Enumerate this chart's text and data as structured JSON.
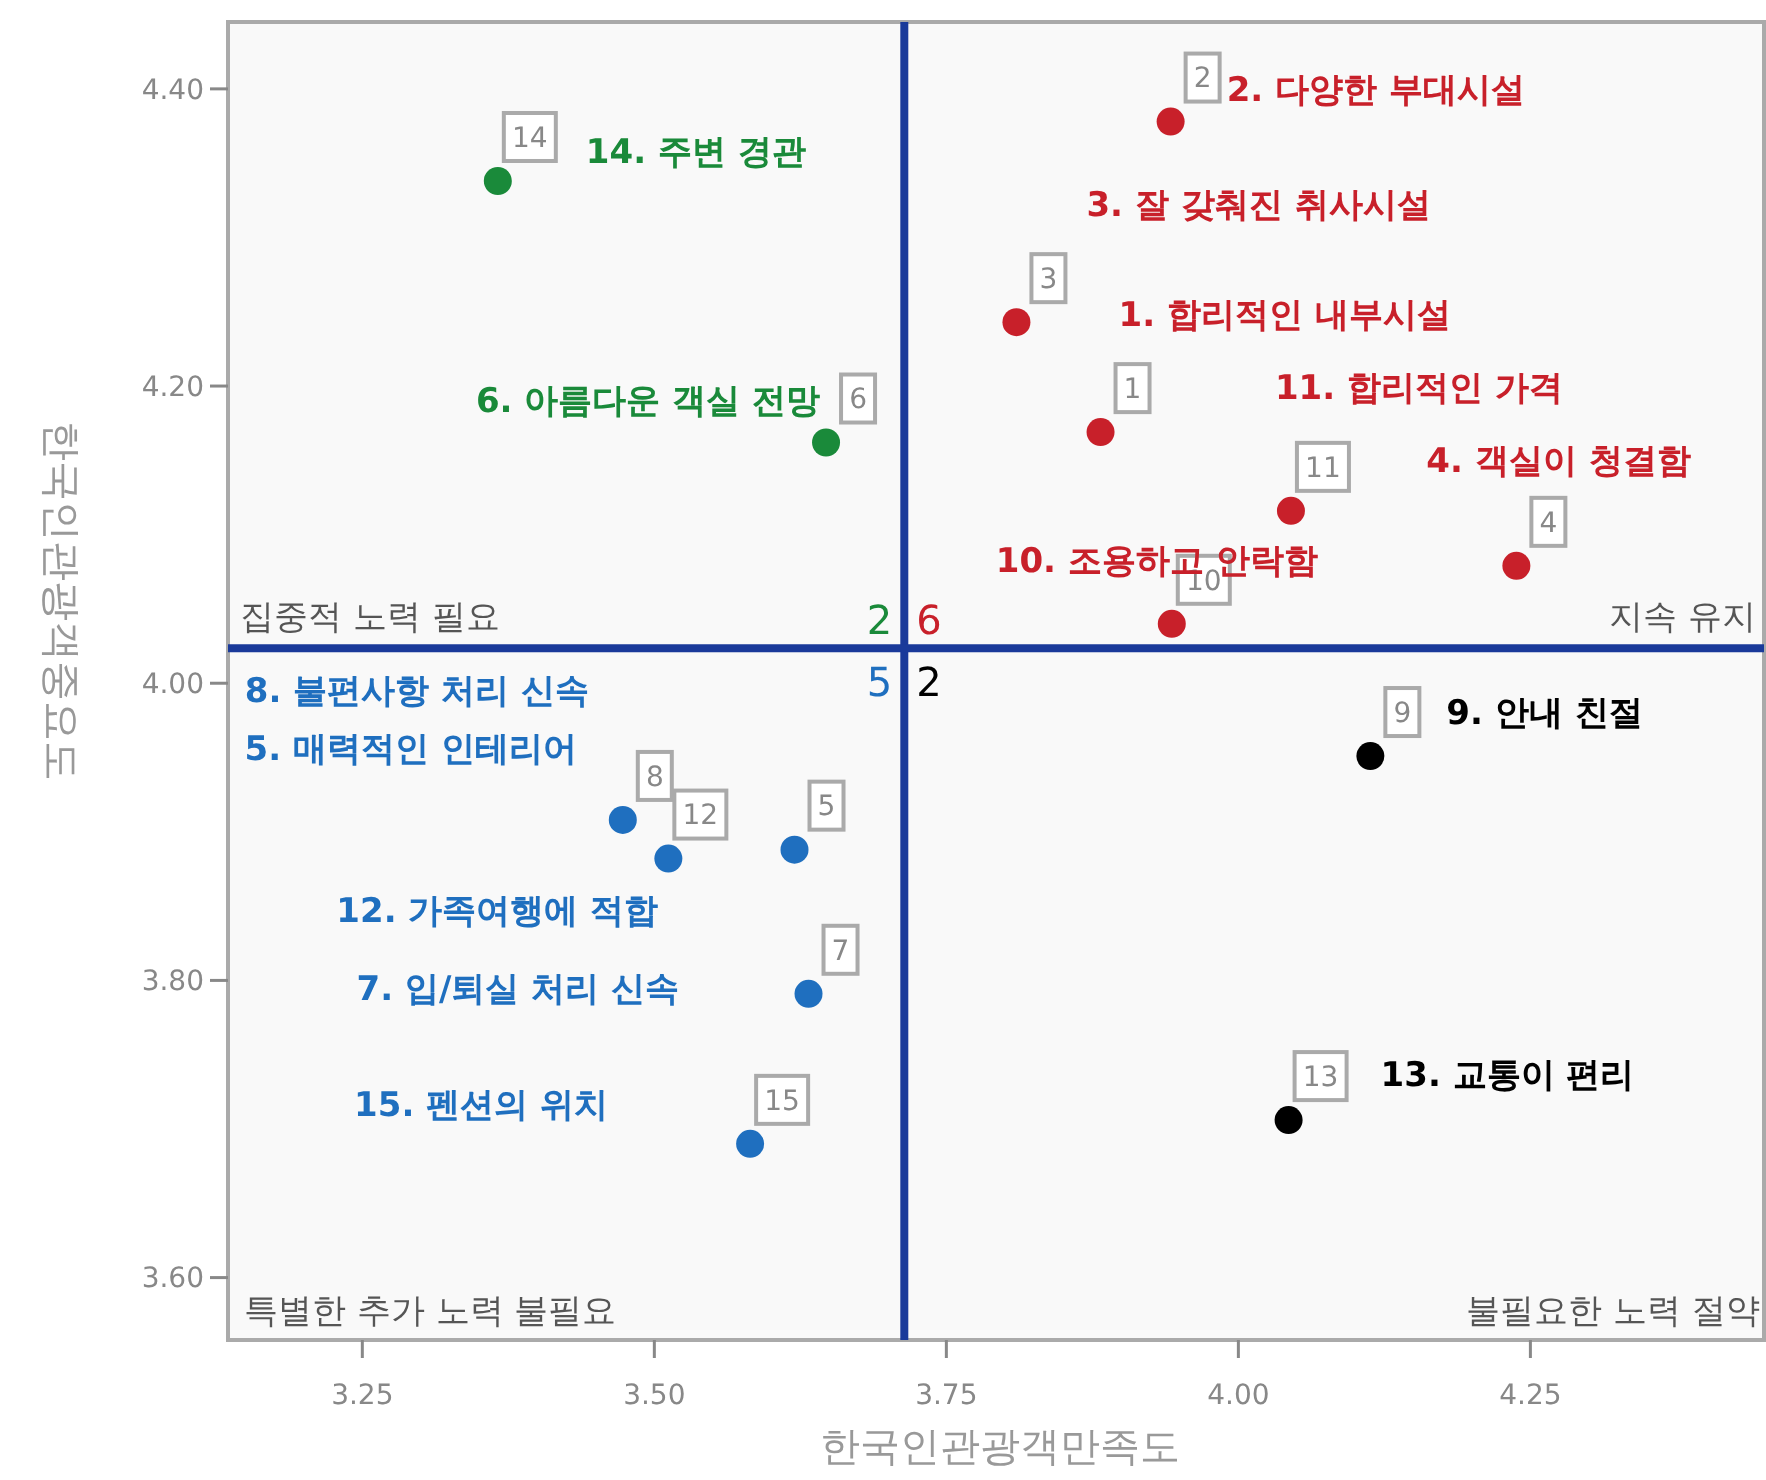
{
  "chart_data": {
    "type": "scatter",
    "xlabel": "한국인관광객만족도",
    "ylabel": "한국인관광객중요도",
    "xlim": [
      3.135,
      4.45
    ],
    "ylim": [
      3.558,
      4.445
    ],
    "xticks": [
      3.25,
      {
        "value": 3.5,
        "label": "3.50"
      },
      3.75,
      {
        "value": 4,
        "label": "4.00"
      },
      4.25
    ],
    "yticks": [
      {
        "value": 3.6,
        "label": "3.60"
      },
      {
        "value": 3.8,
        "label": "3.80"
      },
      {
        "value": 4,
        "label": "4.00"
      },
      {
        "value": 4.2,
        "label": "4.20"
      },
      {
        "value": 4.4,
        "label": "4.40"
      }
    ],
    "grid": false,
    "marker": "circle",
    "series": [
      {
        "color": "#c8202a",
        "x": [
          3.882,
          3.942,
          3.81,
          4.238,
          3.943,
          4.045
        ],
        "values": [
          4.169,
          4.378,
          4.243,
          4.079,
          4.04,
          4.116
        ]
      },
      {
        "color": "#1a8a3a",
        "x": [
          3.647,
          3.366
        ],
        "values": [
          4.162,
          4.338
        ]
      },
      {
        "color": "#1f6fbf",
        "x": [
          3.62,
          3.632,
          3.473,
          3.512,
          3.582
        ],
        "values": [
          3.888,
          3.791,
          3.908,
          3.882,
          3.69
        ]
      },
      {
        "color": "#000000",
        "x": [
          4.113,
          4.043
        ],
        "values": [
          3.951,
          3.706
        ]
      }
    ],
    "ref_lines": [
      {
        "axis": "x",
        "value": 3.714,
        "color": "#1a3a9a"
      },
      {
        "axis": "y",
        "value": 4.0235,
        "color": "#1a3a9a"
      }
    ],
    "annotations": [
      {
        "text": "1",
        "x": 3.882,
        "y": 4.169
      },
      {
        "text": "2",
        "x": 3.942,
        "y": 4.378
      },
      {
        "text": "3",
        "x": 3.81,
        "y": 4.243
      },
      {
        "text": "4",
        "x": 4.238,
        "y": 4.079
      },
      {
        "text": "10",
        "x": 3.943,
        "y": 4.04
      },
      {
        "text": "11",
        "x": 4.045,
        "y": 4.116
      },
      {
        "text": "6",
        "x": 3.647,
        "y": 4.162
      },
      {
        "text": "14",
        "x": 3.366,
        "y": 4.338
      },
      {
        "text": "5",
        "x": 3.62,
        "y": 3.888
      },
      {
        "text": "7",
        "x": 3.632,
        "y": 3.791
      },
      {
        "text": "8",
        "x": 3.473,
        "y": 3.908
      },
      {
        "text": "12",
        "x": 3.512,
        "y": 3.882
      },
      {
        "text": "15",
        "x": 3.582,
        "y": 3.69
      },
      {
        "text": "9",
        "x": 4.113,
        "y": 3.951
      },
      {
        "text": "13",
        "x": 4.043,
        "y": 3.706
      },
      "1. 합리적인 내부시설",
      "2. 다양한 부대시설",
      "3. 잘 갖춰진 취사시설",
      "4. 객실이 청결함",
      "10. 조용하고 안락함",
      "11. 합리적인 가격",
      "6. 아름다운 객실 전망",
      "14. 주변 경관",
      "5. 매력적인 인테리어",
      "7. 입/퇴실 처리 신속",
      "8. 불편사항 처리 신속",
      "12. 가족여행에 적합",
      "15. 펜션의 위치",
      "9. 안내 친절",
      "13. 교통이 편리",
      "집중적 노력 필요",
      "지속 유지",
      "특별한 추가 노력 불필요",
      "불필요한 노력 절약",
      "6",
      "2",
      "5",
      "2"
    ]
  }
}
